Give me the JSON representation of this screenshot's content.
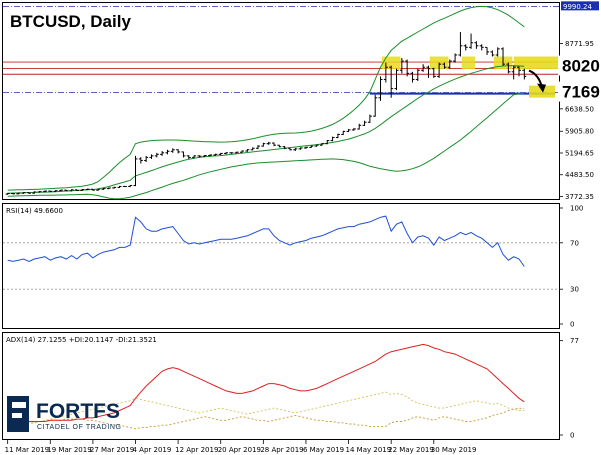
{
  "title": "BTCUSD, Daily",
  "brand": {
    "name": "FORTFS",
    "tagline": "CITADEL OF TRADING",
    "color": "#0b2a52"
  },
  "colors": {
    "price": "#000000",
    "bollinger": "#1a8f2a",
    "rsi": "#1f4fd6",
    "adx": "#e02020",
    "di_plus": "#d9c15a",
    "di_minus": "#c59a34",
    "resistance_line": "#c62020",
    "support_line": "#1a2fb0",
    "highlight": "#e6dc1e"
  },
  "chart_data": [
    {
      "type": "candlestick",
      "title": "BTCUSD, Daily",
      "y_ticks": [
        "9990.24",
        "8771.95",
        "8020",
        "7169",
        "6638.50",
        "5905.80",
        "5194.65",
        "4483.50",
        "3772.35"
      ],
      "ylim": [
        3690,
        10100
      ],
      "x_ticks": [
        "11 Mar 2019",
        "19 Mar 2019",
        "27 Mar 2019",
        "4 Apr 2019",
        "12 Apr 2019",
        "20 Apr 2019",
        "28 Apr 2019",
        "6 May 2019",
        "14 May 2019",
        "22 May 2019",
        "30 May 2019"
      ],
      "close": [
        3870,
        3860,
        3880,
        3900,
        3880,
        3920,
        3930,
        3950,
        3940,
        3960,
        3980,
        3960,
        3990,
        3970,
        4000,
        4010,
        3980,
        4010,
        4030,
        4050,
        4070,
        4100,
        4100,
        4130,
        5000,
        4950,
        5050,
        5100,
        5150,
        5200,
        5250,
        5300,
        5230,
        5100,
        5050,
        5100,
        5090,
        5110,
        5130,
        5150,
        5180,
        5200,
        5200,
        5220,
        5260,
        5300,
        5350,
        5420,
        5500,
        5520,
        5450,
        5400,
        5350,
        5300,
        5330,
        5360,
        5380,
        5420,
        5450,
        5500,
        5600,
        5700,
        5800,
        5900,
        5950,
        5980,
        6100,
        6200,
        6400,
        7000,
        7600,
        8000,
        7300,
        7900,
        8200,
        7800,
        7600,
        7900,
        8000,
        7950,
        7700,
        8100,
        8000,
        8200,
        8400,
        8700,
        8650,
        8800,
        8700,
        8650,
        8500,
        8400,
        8600,
        8100,
        7850,
        8000,
        7900,
        7700
      ],
      "open": [
        3850,
        3870,
        3860,
        3880,
        3900,
        3880,
        3920,
        3930,
        3950,
        3940,
        3960,
        3980,
        3960,
        3990,
        3970,
        4000,
        4010,
        3980,
        4010,
        4030,
        4050,
        4070,
        4100,
        4100,
        4130,
        5000,
        4950,
        5050,
        5100,
        5150,
        5200,
        5250,
        5300,
        5230,
        5100,
        5050,
        5100,
        5090,
        5110,
        5130,
        5150,
        5180,
        5200,
        5200,
        5220,
        5260,
        5300,
        5350,
        5420,
        5500,
        5520,
        5450,
        5400,
        5350,
        5300,
        5330,
        5360,
        5380,
        5420,
        5450,
        5500,
        5600,
        5700,
        5800,
        5900,
        5950,
        5980,
        6100,
        6200,
        6400,
        7000,
        7600,
        8000,
        7300,
        7900,
        8200,
        7800,
        7600,
        7900,
        8000,
        7950,
        7700,
        8100,
        8000,
        8200,
        8400,
        8700,
        8650,
        8800,
        8700,
        8650,
        8500,
        8400,
        8600,
        8100,
        7850,
        8000,
        7900
      ],
      "high": [
        3890,
        3890,
        3900,
        3920,
        3910,
        3940,
        3950,
        3970,
        3960,
        3980,
        4000,
        3990,
        4010,
        4000,
        4020,
        4030,
        4020,
        4030,
        4050,
        4070,
        4090,
        4120,
        4120,
        4150,
        5100,
        5060,
        5100,
        5150,
        5200,
        5260,
        5300,
        5350,
        5320,
        5240,
        5120,
        5120,
        5120,
        5130,
        5150,
        5170,
        5200,
        5220,
        5220,
        5240,
        5280,
        5320,
        5380,
        5450,
        5530,
        5560,
        5540,
        5460,
        5420,
        5360,
        5360,
        5380,
        5400,
        5440,
        5470,
        5520,
        5620,
        5730,
        5830,
        5920,
        5980,
        6010,
        6150,
        6250,
        6450,
        7100,
        7700,
        8150,
        8050,
        7950,
        8300,
        8250,
        7850,
        7950,
        8100,
        8050,
        7980,
        8150,
        8150,
        8250,
        8450,
        9150,
        8750,
        9100,
        8850,
        8750,
        8650,
        8550,
        8650,
        8650,
        8150,
        8050,
        8020,
        7950
      ],
      "low": [
        3830,
        3840,
        3840,
        3860,
        3860,
        3860,
        3900,
        3910,
        3920,
        3920,
        3940,
        3940,
        3940,
        3950,
        3950,
        3980,
        3960,
        3960,
        3990,
        4010,
        4030,
        4050,
        4080,
        4080,
        4110,
        4850,
        4900,
        5000,
        5050,
        5100,
        5150,
        5200,
        5180,
        5050,
        5000,
        5020,
        5050,
        5060,
        5080,
        5100,
        5120,
        5150,
        5170,
        5180,
        5200,
        5230,
        5280,
        5320,
        5400,
        5460,
        5420,
        5380,
        5320,
        5280,
        5260,
        5300,
        5330,
        5360,
        5400,
        5430,
        5480,
        5580,
        5680,
        5780,
        5880,
        5920,
        5960,
        6080,
        6180,
        6380,
        6900,
        7500,
        7000,
        7250,
        7800,
        7700,
        7500,
        7550,
        7850,
        7650,
        7650,
        7650,
        7950,
        7950,
        8150,
        8350,
        8550,
        8600,
        8600,
        8550,
        8400,
        8350,
        8350,
        8050,
        7800,
        7600,
        7700,
        7600
      ],
      "bollinger": {
        "upper": [
          3980,
          3985,
          3990,
          3995,
          4000,
          4005,
          4010,
          4020,
          4030,
          4040,
          4050,
          4060,
          4075,
          4090,
          4110,
          4140,
          4180,
          4260,
          4400,
          4550,
          4720,
          4880,
          5020,
          5150,
          5500,
          5550,
          5580,
          5600,
          5610,
          5615,
          5620,
          5620,
          5615,
          5605,
          5595,
          5585,
          5575,
          5565,
          5560,
          5555,
          5550,
          5555,
          5565,
          5580,
          5600,
          5630,
          5660,
          5700,
          5740,
          5780,
          5810,
          5830,
          5840,
          5845,
          5850,
          5860,
          5880,
          5910,
          5950,
          6000,
          6060,
          6130,
          6220,
          6330,
          6460,
          6600,
          6760,
          6950,
          7200,
          7600,
          8000,
          8300,
          8550,
          8700,
          8850,
          8950,
          9050,
          9150,
          9250,
          9350,
          9450,
          9530,
          9600,
          9680,
          9760,
          9840,
          9900,
          9950,
          9980,
          9990,
          9980,
          9940,
          9880,
          9800,
          9700,
          9580,
          9450,
          9320
        ],
        "middle": [
          3880,
          3885,
          3890,
          3895,
          3900,
          3905,
          3910,
          3915,
          3920,
          3930,
          3940,
          3950,
          3960,
          3970,
          3980,
          3990,
          4000,
          4020,
          4060,
          4100,
          4150,
          4200,
          4250,
          4300,
          4450,
          4500,
          4560,
          4620,
          4680,
          4740,
          4800,
          4850,
          4900,
          4950,
          4990,
          5020,
          5050,
          5070,
          5090,
          5100,
          5110,
          5130,
          5150,
          5170,
          5190,
          5210,
          5230,
          5250,
          5270,
          5290,
          5310,
          5330,
          5350,
          5370,
          5390,
          5410,
          5430,
          5450,
          5470,
          5490,
          5510,
          5540,
          5570,
          5610,
          5650,
          5700,
          5760,
          5820,
          5900,
          6000,
          6120,
          6250,
          6380,
          6500,
          6620,
          6740,
          6860,
          6980,
          7090,
          7190,
          7290,
          7380,
          7460,
          7540,
          7610,
          7680,
          7740,
          7800,
          7850,
          7900,
          7950,
          7990,
          8020,
          8040,
          8050,
          8050,
          8040,
          8030
        ],
        "lower": [
          3780,
          3785,
          3790,
          3795,
          3800,
          3805,
          3810,
          3812,
          3814,
          3816,
          3820,
          3825,
          3830,
          3835,
          3840,
          3845,
          3830,
          3800,
          3760,
          3720,
          3700,
          3700,
          3720,
          3750,
          3800,
          3850,
          3900,
          3960,
          4020,
          4080,
          4140,
          4200,
          4250,
          4300,
          4360,
          4420,
          4480,
          4530,
          4580,
          4620,
          4660,
          4700,
          4740,
          4770,
          4800,
          4830,
          4850,
          4870,
          4880,
          4890,
          4900,
          4910,
          4920,
          4930,
          4940,
          4950,
          4960,
          4970,
          4980,
          4990,
          4995,
          5000,
          4990,
          4980,
          4950,
          4920,
          4880,
          4820,
          4760,
          4720,
          4680,
          4650,
          4620,
          4600,
          4610,
          4640,
          4680,
          4740,
          4820,
          4920,
          5020,
          5140,
          5260,
          5380,
          5500,
          5620,
          5760,
          5900,
          6050,
          6200,
          6350,
          6500,
          6650,
          6800,
          6950,
          7100,
          7130,
          7150
        ]
      },
      "levels": [
        {
          "label": "8020",
          "value": 8020,
          "kind": "resistance",
          "display": "8020"
        },
        {
          "label": "7169",
          "value": 7169,
          "kind": "support",
          "display": "7169"
        }
      ],
      "reference_lines": [
        {
          "label": "9990.24",
          "value": 9990.24
        }
      ]
    },
    {
      "type": "line",
      "title": "RSI(14) 49.6600",
      "y_ticks": [
        "100",
        "70",
        "30",
        "0"
      ],
      "ylim": [
        0,
        100
      ],
      "series": [
        {
          "values": [
            55,
            54,
            55,
            56,
            54,
            56,
            57,
            58,
            55,
            57,
            58,
            56,
            59,
            56,
            60,
            61,
            57,
            60,
            62,
            63,
            64,
            66,
            66,
            68,
            92,
            88,
            82,
            80,
            80,
            82,
            83,
            84,
            78,
            72,
            69,
            70,
            69,
            70,
            71,
            72,
            73,
            73,
            73,
            74,
            75,
            76,
            78,
            80,
            82,
            82,
            76,
            72,
            70,
            68,
            70,
            71,
            72,
            74,
            75,
            76,
            78,
            80,
            82,
            83,
            84,
            84,
            86,
            87,
            88,
            90,
            92,
            93,
            80,
            86,
            88,
            78,
            70,
            75,
            76,
            74,
            68,
            75,
            72,
            74,
            76,
            79,
            77,
            79,
            76,
            74,
            70,
            66,
            70,
            60,
            55,
            58,
            56,
            49.66
          ]
        }
      ]
    },
    {
      "type": "line",
      "title": "ADX(14) 27.1255 +DI:20.1147 -DI:21.3521",
      "y_ticks": [
        "77",
        "0"
      ],
      "ylim": [
        0,
        80
      ],
      "series": [
        {
          "name": "ADX",
          "values": [
            10,
            10,
            10,
            10,
            11,
            11,
            11,
            11,
            12,
            12,
            12,
            12,
            12,
            13,
            13,
            14,
            14,
            15,
            16,
            17,
            18,
            20,
            22,
            24,
            30,
            35,
            40,
            44,
            48,
            52,
            54,
            55,
            54,
            52,
            50,
            48,
            46,
            44,
            42,
            40,
            38,
            36,
            35,
            34,
            34,
            35,
            36,
            38,
            40,
            42,
            42,
            41,
            40,
            38,
            37,
            36,
            36,
            37,
            38,
            40,
            42,
            44,
            46,
            48,
            50,
            52,
            54,
            56,
            58,
            60,
            63,
            66,
            68,
            69,
            70,
            71,
            72,
            73,
            74,
            73,
            71,
            70,
            68,
            67,
            66,
            64,
            62,
            60,
            58,
            56,
            54,
            50,
            46,
            42,
            38,
            34,
            30,
            27.13
          ]
        },
        {
          "name": "+DI",
          "values": [
            5,
            6,
            7,
            8,
            9,
            10,
            11,
            12,
            13,
            14,
            15,
            16,
            17,
            18,
            19,
            20,
            21,
            22,
            23,
            24,
            25,
            26,
            27,
            28,
            30,
            29,
            28,
            27,
            26,
            25,
            24,
            23,
            22,
            21,
            20,
            19,
            18,
            19,
            20,
            21,
            22,
            21,
            20,
            19,
            18,
            17,
            18,
            19,
            20,
            21,
            22,
            21,
            20,
            19,
            18,
            19,
            20,
            21,
            22,
            23,
            24,
            25,
            26,
            27,
            28,
            29,
            30,
            31,
            32,
            33,
            34,
            35,
            33,
            34,
            33,
            31,
            28,
            26,
            25,
            24,
            23,
            22,
            22,
            23,
            24,
            25,
            26,
            27,
            28,
            27,
            26,
            25,
            26,
            24,
            22,
            21,
            20,
            20.11
          ]
        },
        {
          "name": "-DI",
          "values": [
            8,
            8,
            9,
            9,
            10,
            10,
            11,
            11,
            12,
            12,
            12,
            13,
            13,
            13,
            13,
            12,
            12,
            11,
            10,
            9,
            8,
            8,
            7,
            6,
            5,
            6,
            6,
            7,
            7,
            8,
            8,
            9,
            10,
            11,
            12,
            13,
            14,
            15,
            14,
            13,
            12,
            12,
            13,
            14,
            15,
            14,
            13,
            12,
            12,
            11,
            12,
            13,
            14,
            15,
            16,
            15,
            14,
            13,
            12,
            12,
            11,
            11,
            10,
            10,
            9,
            9,
            8,
            8,
            7,
            7,
            7,
            7,
            10,
            11,
            11,
            12,
            14,
            15,
            14,
            13,
            12,
            14,
            15,
            14,
            13,
            12,
            11,
            11,
            12,
            13,
            14,
            16,
            17,
            18,
            20,
            21,
            22,
            21.35
          ]
        }
      ]
    }
  ]
}
